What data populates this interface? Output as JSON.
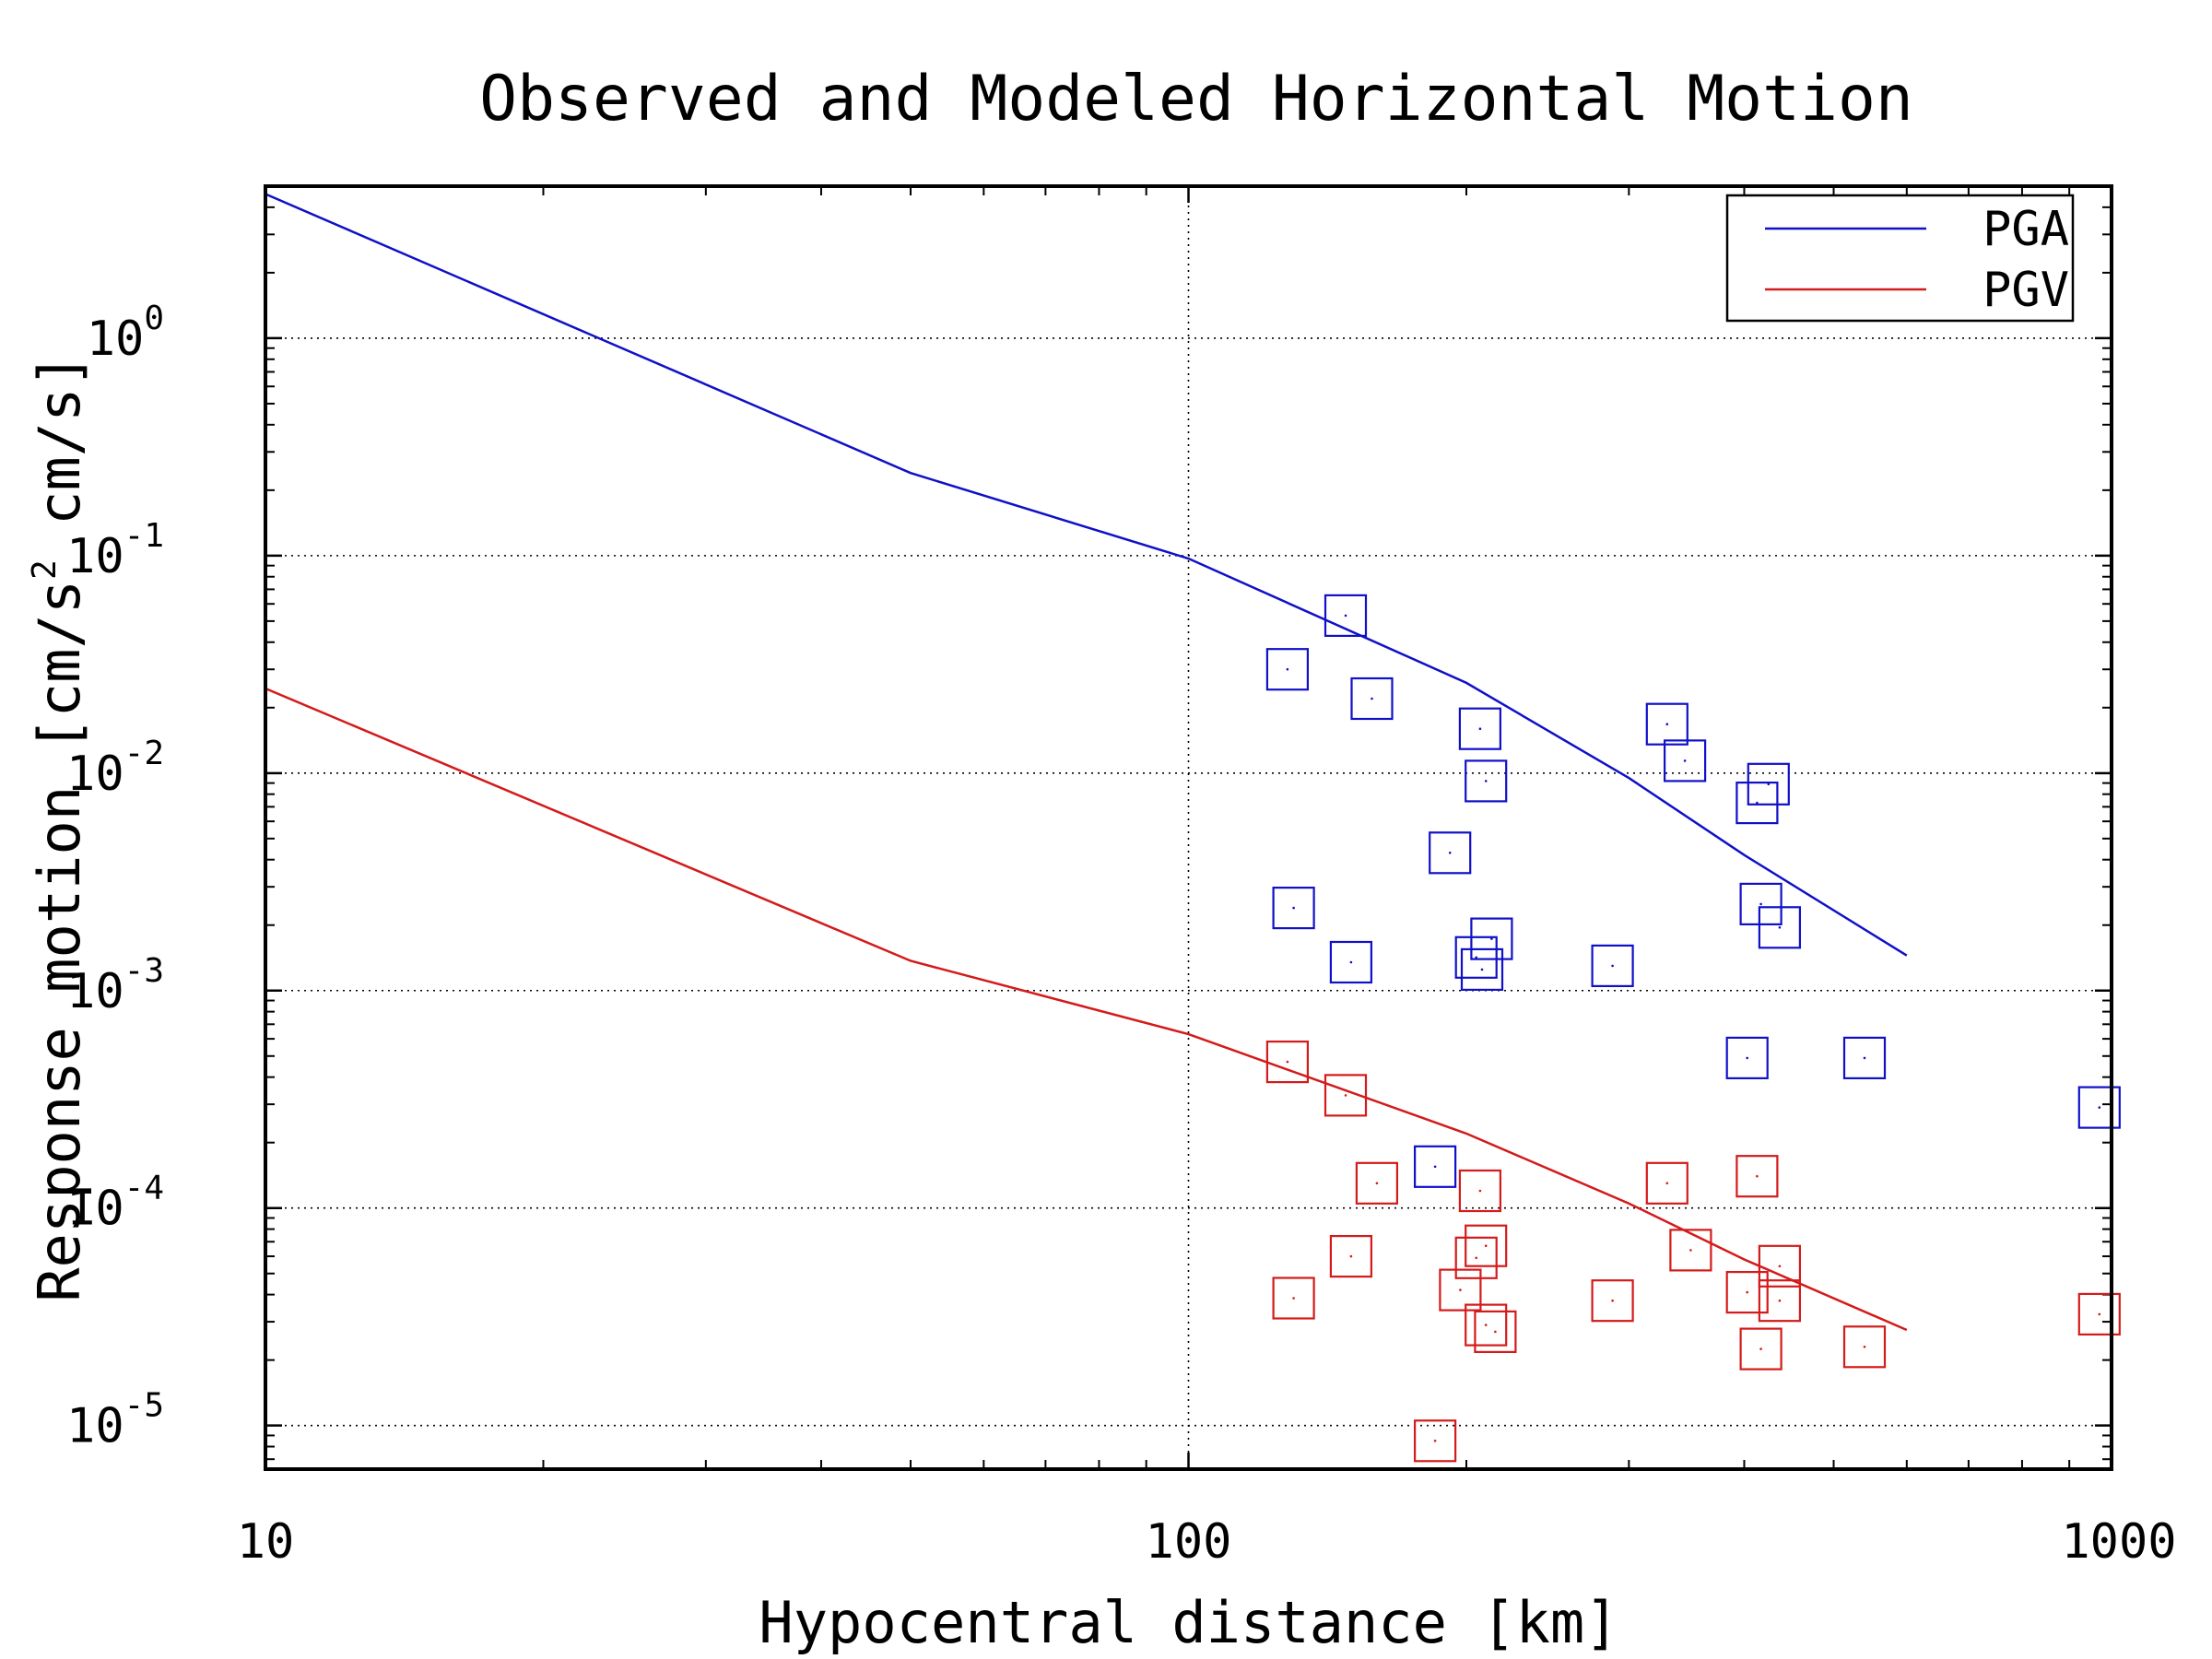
{
  "chart_data": {
    "type": "scatter",
    "title": "Observed and Modeled Horizontal Motion",
    "xlabel": "Hypocentral distance [km]",
    "ylabel": "Response motion [cm/s^2 cm/s]",
    "xscale": "log",
    "yscale": "log",
    "xlim": [
      10,
      1000
    ],
    "ylim": [
      6.3e-06,
      5.0
    ],
    "x_ticks": [
      10,
      100,
      1000
    ],
    "x_tick_labels": [
      "10",
      "100",
      "1000"
    ],
    "y_ticks": [
      1e-05,
      0.0001,
      0.001,
      0.01,
      0.1,
      1
    ],
    "y_tick_exponents": [
      "-5",
      "-4",
      "-3",
      "-2",
      "-1",
      "0"
    ],
    "y_tick_base": "10",
    "grid": true,
    "legend_placement": "top-right",
    "colors": {
      "pga": "#1010c8",
      "pgv": "#d41a1a"
    },
    "series": [
      {
        "name": "PGA",
        "kind": "line",
        "x": [
          10,
          50,
          100,
          200,
          300,
          400,
          600
        ],
        "y": [
          4.6,
          0.24,
          0.097,
          0.026,
          0.0095,
          0.0042,
          0.00145
        ]
      },
      {
        "name": "PGV",
        "kind": "line",
        "x": [
          10,
          50,
          100,
          200,
          300,
          400,
          600
        ],
        "y": [
          0.0245,
          0.00137,
          0.00063,
          0.00022,
          0.000105,
          5.8e-05,
          2.75e-05
        ]
      },
      {
        "kind": "scatter",
        "color_key": "pga",
        "x": [
          148,
          128,
          158,
          207,
          210,
          192,
          130,
          150,
          205,
          208,
          213,
          288,
          330,
          345,
          413,
          425,
          417,
          437,
          403,
          540,
          970,
          185
        ],
        "y": [
          0.053,
          0.03,
          0.022,
          0.016,
          0.0092,
          0.0043,
          0.0024,
          0.00135,
          0.00142,
          0.00125,
          0.00173,
          0.0013,
          0.0168,
          0.0114,
          0.0073,
          0.0089,
          0.0025,
          0.00195,
          0.00049,
          0.00049,
          0.00029,
          0.000155
        ]
      },
      {
        "kind": "scatter",
        "color_key": "pgv",
        "x": [
          128,
          148,
          160,
          150,
          130,
          207,
          210,
          205,
          197,
          210,
          215,
          288,
          330,
          350,
          403,
          413,
          437,
          437,
          417,
          540,
          970,
          185
        ],
        "y": [
          0.00047,
          0.00033,
          0.00013,
          6e-05,
          3.85e-05,
          0.00012,
          6.7e-05,
          5.9e-05,
          4.2e-05,
          2.9e-05,
          2.7e-05,
          3.75e-05,
          0.00013,
          6.4e-05,
          4.1e-05,
          0.00014,
          5.4e-05,
          3.75e-05,
          2.25e-05,
          2.3e-05,
          3.25e-05,
          8.5e-06
        ]
      }
    ]
  }
}
